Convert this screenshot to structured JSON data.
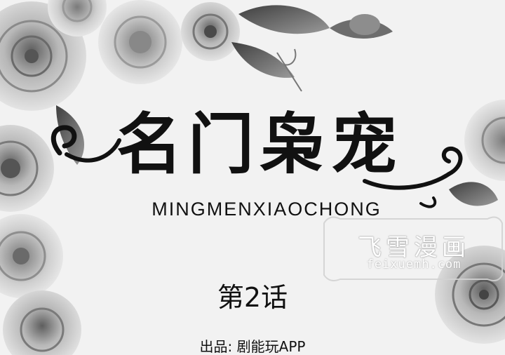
{
  "cover": {
    "title": "名门枭宠",
    "pinyin": "MINGMENXIAOCHONG",
    "chapter": "第2话",
    "credit": "出品: 剧能玩APP"
  },
  "watermark": {
    "site_name": "飞雪漫画",
    "url": "feixuemh.com"
  },
  "colors": {
    "background": "#f2f2f2",
    "ink": "#111111"
  }
}
